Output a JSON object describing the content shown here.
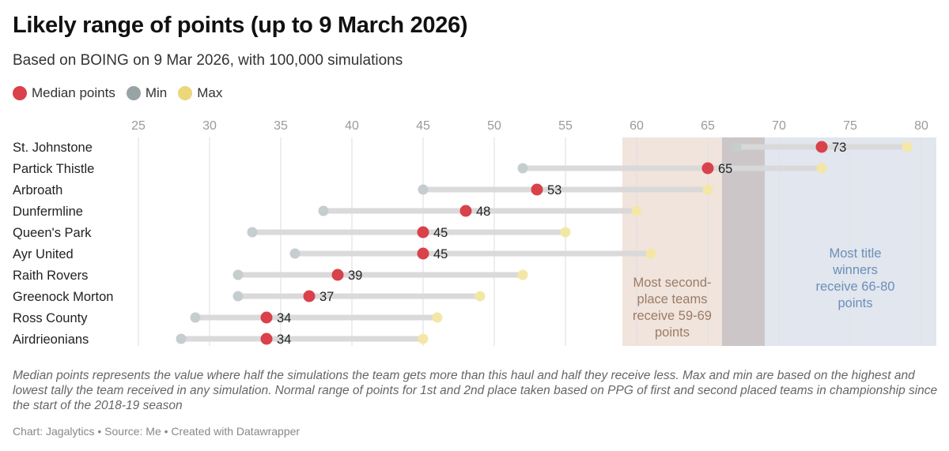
{
  "title": "Likely range of points (up to 9 March 2026)",
  "subtitle": "Based on BOING on 9 Mar 2026, with 100,000 simulations",
  "legend": [
    {
      "label": "Median points",
      "color": "#d9414b"
    },
    {
      "label": "Min",
      "color": "#97a4a6"
    },
    {
      "label": "Max",
      "color": "#ecd77a"
    }
  ],
  "chart_data": {
    "type": "range-dot",
    "title": "Likely range of points (up to 9 March 2026)",
    "subtitle": "Based on BOING on 9 Mar 2026, with 100,000 simulations",
    "xlim": [
      25,
      81
    ],
    "x_ticks": [
      25,
      30,
      35,
      40,
      45,
      50,
      55,
      60,
      65,
      70,
      75,
      80
    ],
    "grid": true,
    "legend_position": "top-left",
    "categories": [
      "St. Johnstone",
      "Partick Thistle",
      "Arbroath",
      "Dunfermline",
      "Queen's Park",
      "Ayr United",
      "Raith Rovers",
      "Greenock Morton",
      "Ross County",
      "Airdrieonians"
    ],
    "series": [
      {
        "name": "Median points",
        "values": [
          73,
          65,
          53,
          48,
          45,
          45,
          39,
          37,
          34,
          34
        ]
      },
      {
        "name": "Min",
        "values": [
          67,
          52,
          45,
          38,
          33,
          36,
          32,
          32,
          29,
          28
        ]
      },
      {
        "name": "Max",
        "values": [
          79,
          73,
          65,
          60,
          55,
          61,
          52,
          49,
          46,
          45
        ]
      }
    ],
    "bands": [
      {
        "label": "Most second-place teams receive 59-69 points",
        "lines": [
          "Most second-",
          "place teams",
          "receive 59-69",
          "points"
        ],
        "range": [
          59,
          69
        ],
        "color": "#f0e4dc",
        "text_color": "#9c7b67"
      },
      {
        "label": "Most title winners receive 66-80 points",
        "lines": [
          "Most title",
          "winners",
          "receive 66-80",
          "points"
        ],
        "range": [
          66,
          81
        ],
        "color": "#e1e6ef",
        "text_color": "#6c8fb6"
      }
    ],
    "overlap_color": "#cdc6c8"
  },
  "notes": "Median points represents the value where half the simulations the team gets more than this haul and half they receive less. Max and min are based on the highest and lowest tally the team received in any simulation. Normal range of points for 1st and 2nd place taken based on PPG of first and second placed teams in championship since the start of the 2018-19 season",
  "footer": "Chart: Jagalytics • Source: Me • Created with Datawrapper"
}
